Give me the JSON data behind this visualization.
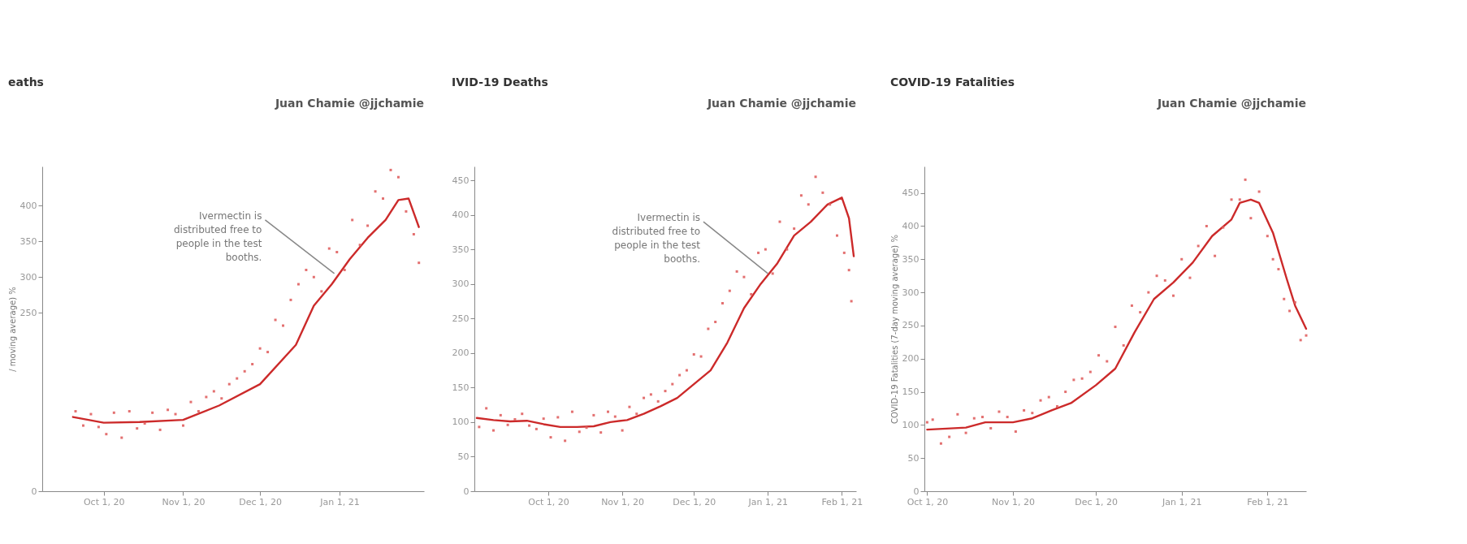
{
  "chart_data": [
    {
      "type": "line",
      "title": "eaths",
      "ylabel": "/ moving average) %",
      "annotations": [
        "Juan Chamie @jjchamie",
        {
          "text": "Ivermectin is distributed free to people in the test booths.",
          "x": "2020-12-30",
          "y": 305
        }
      ],
      "xlim": [
        "2020-09-07",
        "2021-02-03"
      ],
      "ylim": [
        0,
        455
      ],
      "yticks": [
        0,
        250,
        300,
        350,
        400
      ],
      "xticks": [
        {
          "value": "2020-10-01",
          "label": "Oct 1, 20"
        },
        {
          "value": "2020-11-01",
          "label": "Nov 1, 20"
        },
        {
          "value": "2020-12-01",
          "label": "Dec 1, 20"
        },
        {
          "value": "2021-01-01",
          "label": "Jan 1, 21"
        }
      ],
      "grid": false,
      "legend": false,
      "line_style": "solid",
      "series": [
        {
          "type": "line",
          "color": "#cc2a2a",
          "x": [
            "2020-09-19",
            "2020-10-01",
            "2020-10-15",
            "2020-11-01",
            "2020-11-15",
            "2020-12-01",
            "2020-12-15",
            "2020-12-22",
            "2020-12-29",
            "2021-01-05",
            "2021-01-12",
            "2021-01-19",
            "2021-01-24",
            "2021-01-28",
            "2021-02-01"
          ],
          "values": [
            104,
            96,
            97,
            100,
            120,
            150,
            205,
            260,
            290,
            325,
            355,
            380,
            408,
            410,
            370
          ]
        },
        {
          "type": "scatter",
          "marker": "square",
          "color": "#e06060",
          "x": [
            "2020-09-20",
            "2020-09-23",
            "2020-09-26",
            "2020-09-29",
            "2020-10-02",
            "2020-10-05",
            "2020-10-08",
            "2020-10-11",
            "2020-10-14",
            "2020-10-17",
            "2020-10-20",
            "2020-10-23",
            "2020-10-26",
            "2020-10-29",
            "2020-11-01",
            "2020-11-04",
            "2020-11-07",
            "2020-11-10",
            "2020-11-13",
            "2020-11-16",
            "2020-11-19",
            "2020-11-22",
            "2020-11-25",
            "2020-11-28",
            "2020-12-01",
            "2020-12-04",
            "2020-12-07",
            "2020-12-10",
            "2020-12-13",
            "2020-12-16",
            "2020-12-19",
            "2020-12-22",
            "2020-12-25",
            "2020-12-28",
            "2020-12-31",
            "2021-01-03",
            "2021-01-06",
            "2021-01-09",
            "2021-01-12",
            "2021-01-15",
            "2021-01-18",
            "2021-01-21",
            "2021-01-24",
            "2021-01-27",
            "2021-01-30",
            "2021-02-01"
          ],
          "values": [
            112,
            92,
            108,
            90,
            80,
            110,
            75,
            112,
            88,
            95,
            110,
            86,
            114,
            108,
            92,
            125,
            112,
            132,
            140,
            130,
            150,
            158,
            168,
            178,
            200,
            195,
            240,
            232,
            268,
            290,
            310,
            300,
            280,
            340,
            335,
            310,
            380,
            345,
            372,
            420,
            410,
            450,
            440,
            392,
            360,
            320
          ]
        }
      ]
    },
    {
      "type": "line",
      "title": "IVID-19 Deaths",
      "annotations": [
        "Juan Chamie @jjchamie",
        {
          "text": "Ivermectin is distributed free to people in the test booths.",
          "x": "2021-01-01",
          "y": 315
        }
      ],
      "xlim": [
        "2020-08-31",
        "2021-02-07"
      ],
      "ylim": [
        0,
        470
      ],
      "yticks": [
        0,
        50,
        100,
        150,
        200,
        250,
        300,
        350,
        400,
        450
      ],
      "xticks": [
        {
          "value": "2020-10-01",
          "label": "Oct 1, 20"
        },
        {
          "value": "2020-11-01",
          "label": "Nov 1, 20"
        },
        {
          "value": "2020-12-01",
          "label": "Dec 1, 20"
        },
        {
          "value": "2021-01-01",
          "label": "Jan 1, 21"
        },
        {
          "value": "2021-02-01",
          "label": "Feb 1, 21"
        }
      ],
      "grid": false,
      "legend": false,
      "line_style": "solid",
      "series": [
        {
          "type": "line",
          "color": "#cc2a2a",
          "x": [
            "2020-09-01",
            "2020-09-08",
            "2020-09-15",
            "2020-09-22",
            "2020-09-29",
            "2020-10-06",
            "2020-10-13",
            "2020-10-20",
            "2020-10-27",
            "2020-11-03",
            "2020-11-10",
            "2020-11-17",
            "2020-11-24",
            "2020-12-01",
            "2020-12-08",
            "2020-12-15",
            "2020-12-22",
            "2020-12-29",
            "2021-01-05",
            "2021-01-12",
            "2021-01-19",
            "2021-01-26",
            "2021-02-01",
            "2021-02-04",
            "2021-02-06"
          ],
          "values": [
            106,
            103,
            101,
            102,
            97,
            93,
            93,
            94,
            100,
            103,
            112,
            123,
            135,
            155,
            175,
            215,
            265,
            300,
            330,
            370,
            390,
            415,
            425,
            395,
            340
          ]
        },
        {
          "type": "scatter",
          "marker": "square",
          "color": "#e06060",
          "x": [
            "2020-09-02",
            "2020-09-05",
            "2020-09-08",
            "2020-09-11",
            "2020-09-14",
            "2020-09-17",
            "2020-09-20",
            "2020-09-23",
            "2020-09-26",
            "2020-09-29",
            "2020-10-02",
            "2020-10-05",
            "2020-10-08",
            "2020-10-11",
            "2020-10-14",
            "2020-10-17",
            "2020-10-20",
            "2020-10-23",
            "2020-10-26",
            "2020-10-29",
            "2020-11-01",
            "2020-11-04",
            "2020-11-07",
            "2020-11-10",
            "2020-11-13",
            "2020-11-16",
            "2020-11-19",
            "2020-11-22",
            "2020-11-25",
            "2020-11-28",
            "2020-12-01",
            "2020-12-04",
            "2020-12-07",
            "2020-12-10",
            "2020-12-13",
            "2020-12-16",
            "2020-12-19",
            "2020-12-22",
            "2020-12-25",
            "2020-12-28",
            "2020-12-31",
            "2021-01-03",
            "2021-01-06",
            "2021-01-09",
            "2021-01-12",
            "2021-01-15",
            "2021-01-18",
            "2021-01-21",
            "2021-01-24",
            "2021-01-27",
            "2021-01-30",
            "2021-02-02",
            "2021-02-04",
            "2021-02-05"
          ],
          "values": [
            93,
            120,
            88,
            110,
            96,
            104,
            112,
            95,
            90,
            105,
            78,
            107,
            73,
            115,
            86,
            92,
            110,
            85,
            115,
            108,
            88,
            122,
            112,
            135,
            140,
            130,
            145,
            155,
            168,
            175,
            198,
            195,
            235,
            245,
            272,
            290,
            318,
            310,
            285,
            345,
            350,
            315,
            390,
            350,
            380,
            428,
            415,
            455,
            432,
            415,
            370,
            345,
            320,
            275
          ]
        }
      ]
    },
    {
      "type": "line",
      "title": "COVID-19 Fatalities",
      "ylabel": "COVID-19 Fatalities (7-day moving average) %",
      "annotations": [
        "Juan Chamie @jjchamie"
      ],
      "xlim": [
        "2020-09-30",
        "2021-02-15"
      ],
      "ylim": [
        0,
        490
      ],
      "yticks": [
        0,
        50,
        100,
        150,
        200,
        250,
        300,
        350,
        400,
        450
      ],
      "xticks": [
        {
          "value": "2020-10-01",
          "label": "Oct 1, 20"
        },
        {
          "value": "2020-11-01",
          "label": "Nov 1, 20"
        },
        {
          "value": "2020-12-01",
          "label": "Dec 1, 20"
        },
        {
          "value": "2021-01-01",
          "label": "Jan 1, 21"
        },
        {
          "value": "2021-02-01",
          "label": "Feb 1, 21"
        }
      ],
      "grid": false,
      "legend": false,
      "line_style": "solid",
      "series": [
        {
          "type": "line",
          "color": "#cc2a2a",
          "x": [
            "2020-10-01",
            "2020-10-15",
            "2020-10-22",
            "2020-11-01",
            "2020-11-08",
            "2020-11-15",
            "2020-11-22",
            "2020-12-01",
            "2020-12-08",
            "2020-12-15",
            "2020-12-22",
            "2020-12-29",
            "2021-01-05",
            "2021-01-12",
            "2021-01-19",
            "2021-01-22",
            "2021-01-26",
            "2021-01-29",
            "2021-02-03",
            "2021-02-08",
            "2021-02-11",
            "2021-02-15"
          ],
          "values": [
            93,
            96,
            104,
            104,
            110,
            122,
            133,
            160,
            185,
            240,
            290,
            315,
            345,
            385,
            410,
            435,
            440,
            435,
            390,
            320,
            280,
            245
          ]
        },
        {
          "type": "scatter",
          "marker": "square",
          "color": "#e06060",
          "x": [
            "2020-10-01",
            "2020-10-03",
            "2020-10-06",
            "2020-10-09",
            "2020-10-12",
            "2020-10-15",
            "2020-10-18",
            "2020-10-21",
            "2020-10-24",
            "2020-10-27",
            "2020-10-30",
            "2020-11-02",
            "2020-11-05",
            "2020-11-08",
            "2020-11-11",
            "2020-11-14",
            "2020-11-17",
            "2020-11-20",
            "2020-11-23",
            "2020-11-26",
            "2020-11-29",
            "2020-12-02",
            "2020-12-05",
            "2020-12-08",
            "2020-12-11",
            "2020-12-14",
            "2020-12-17",
            "2020-12-20",
            "2020-12-23",
            "2020-12-26",
            "2020-12-29",
            "2021-01-01",
            "2021-01-04",
            "2021-01-07",
            "2021-01-10",
            "2021-01-13",
            "2021-01-16",
            "2021-01-19",
            "2021-01-22",
            "2021-01-24",
            "2021-01-26",
            "2021-01-29",
            "2021-02-01",
            "2021-02-03",
            "2021-02-05",
            "2021-02-07",
            "2021-02-09",
            "2021-02-11",
            "2021-02-13",
            "2021-02-15"
          ],
          "values": [
            104,
            108,
            72,
            82,
            116,
            88,
            110,
            112,
            95,
            120,
            112,
            90,
            122,
            118,
            137,
            142,
            128,
            150,
            168,
            170,
            180,
            205,
            196,
            248,
            220,
            280,
            270,
            300,
            325,
            318,
            295,
            350,
            322,
            370,
            400,
            355,
            398,
            440,
            440,
            470,
            412,
            452,
            385,
            350,
            335,
            290,
            272,
            285,
            228,
            235
          ]
        }
      ]
    }
  ]
}
